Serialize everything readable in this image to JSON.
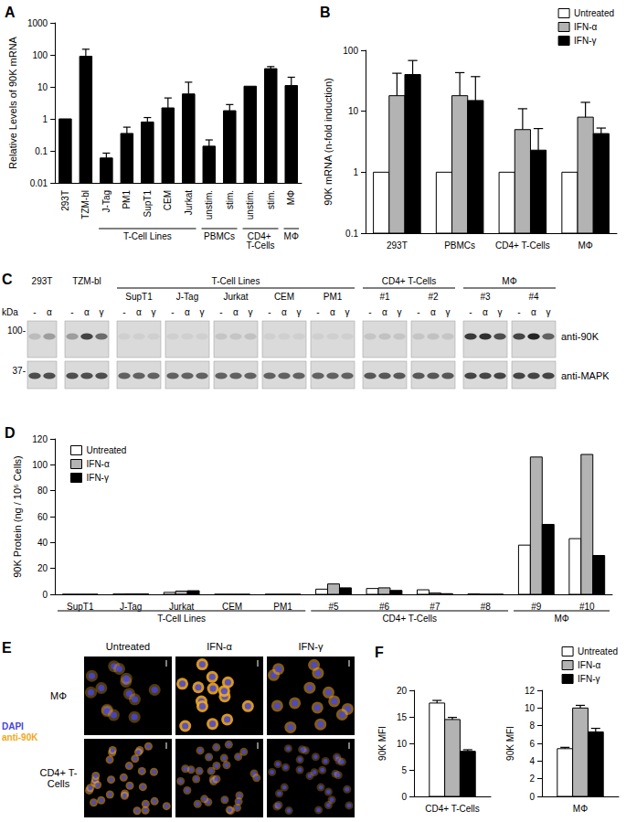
{
  "chart_data": [
    {
      "type": "bar",
      "title": "A",
      "y_label": "Relative Levels of 90K mRNA",
      "categories": [
        "293T",
        "TZM-bl",
        "J-Tag",
        "PM1",
        "SupT1",
        "CEM",
        "Jurkat",
        "unstim.",
        "stim.",
        "unstim.",
        "stim.",
        "MΦ"
      ],
      "values": [
        1,
        90,
        0.06,
        0.35,
        0.8,
        2.2,
        6,
        0.14,
        1.8,
        10.5,
        37,
        11
      ],
      "errors": [
        null,
        60,
        0.025,
        0.2,
        0.3,
        2.3,
        8,
        0.08,
        1,
        null,
        6,
        9
      ],
      "color": "#000000",
      "log": "y",
      "ylim": [
        0.01,
        1000
      ],
      "yticks": [
        0.01,
        0.1,
        1,
        10,
        100,
        1000
      ],
      "grid": false,
      "annotations": [
        {
          "text": "T-Cell Lines",
          "span": [
            2,
            6
          ]
        },
        {
          "text": "PBMCs",
          "span": [
            7,
            8
          ]
        },
        {
          "text": "CD4+ T-Cells",
          "span": [
            9,
            10
          ]
        },
        {
          "text": "MΦ",
          "span": [
            11,
            11
          ]
        }
      ]
    },
    {
      "type": "bar",
      "title": "B",
      "y_label": "90K mRNA (n-fold induction)",
      "categories": [
        "293T",
        "PBMCs",
        "CD4+ T-Cells",
        "MΦ"
      ],
      "series": [
        {
          "name": "Untreated",
          "color": "#ffffff",
          "values": [
            1,
            1,
            1,
            1
          ],
          "errors": [
            null,
            null,
            null,
            null
          ]
        },
        {
          "name": "IFN-α",
          "color": "#b3b3b3",
          "values": [
            18,
            18,
            5,
            8
          ],
          "errors": [
            24,
            25,
            6,
            6
          ]
        },
        {
          "name": "IFN-γ",
          "color": "#000000",
          "values": [
            40,
            15,
            2.3,
            4.3
          ],
          "errors": [
            28,
            22,
            2.9,
            1
          ]
        }
      ],
      "log": "y",
      "ylim": [
        0.1,
        100
      ],
      "yticks": [
        0.1,
        1,
        10,
        100
      ],
      "grid": false,
      "legend": "upper right"
    },
    {
      "type": "bar",
      "title": "D",
      "y_label": "90K Protein (ng / 10⁶ Cells)",
      "categories": [
        "SupT1",
        "J-Tag",
        "Jurkat",
        "CEM",
        "PM1",
        "#5",
        "#6",
        "#7",
        "#8",
        "#9",
        "#10"
      ],
      "series": [
        {
          "name": "Untreated",
          "color": "#ffffff",
          "values": [
            0,
            0.2,
            1.5,
            0,
            0,
            4,
            4.5,
            3.5,
            0.3,
            38,
            43
          ]
        },
        {
          "name": "IFN-α",
          "color": "#b3b3b3",
          "values": [
            0,
            0.3,
            2.5,
            0,
            0,
            8,
            5,
            1,
            0,
            106,
            108
          ]
        },
        {
          "name": "IFN-γ",
          "color": "#000000",
          "values": [
            0,
            0.3,
            2.8,
            0,
            0,
            5,
            3,
            0.5,
            0,
            54,
            30
          ]
        }
      ],
      "ylim": [
        0,
        120
      ],
      "yticks": [
        0,
        20,
        40,
        60,
        80,
        100,
        120
      ],
      "grid": false,
      "legend": "upper left",
      "annotations": [
        {
          "text": "T-Cell Lines",
          "span": [
            0,
            4
          ]
        },
        {
          "text": "CD4+ T-Cells",
          "span": [
            5,
            8
          ]
        },
        {
          "text": "MΦ",
          "span": [
            9,
            10
          ]
        }
      ]
    },
    {
      "type": "bar",
      "title": "F",
      "y_label": "90K MFI",
      "categories": [
        "CD4+ T-Cells"
      ],
      "series": [
        {
          "color": "#ffffff",
          "values": [
            17.6
          ],
          "errors": [
            0.5
          ]
        },
        {
          "color": "#b3b3b3",
          "values": [
            14.5
          ],
          "errors": [
            0.4
          ]
        },
        {
          "color": "#000000",
          "values": [
            8.5
          ],
          "errors": [
            0.3
          ]
        }
      ],
      "ylim": [
        0,
        20
      ],
      "yticks": [
        0,
        5,
        10,
        15,
        20
      ],
      "grid": false
    },
    {
      "type": "bar",
      "y_label": "90K MFI",
      "categories": [
        "MΦ"
      ],
      "series": [
        {
          "name": "Untreated",
          "color": "#ffffff",
          "values": [
            5.4
          ],
          "errors": [
            0.15
          ]
        },
        {
          "name": "IFN-α",
          "color": "#b3b3b3",
          "values": [
            10
          ],
          "errors": [
            0.3
          ]
        },
        {
          "name": "IFN-γ",
          "color": "#000000",
          "values": [
            7.3
          ],
          "errors": [
            0.4
          ]
        }
      ],
      "ylim": [
        0,
        12
      ],
      "yticks": [
        0,
        2,
        4,
        6,
        8,
        10,
        12
      ],
      "grid": false,
      "legend": "upper right"
    }
  ],
  "panel_c": {
    "label": "C",
    "unit": "kDa",
    "markers": [
      "100-",
      "37-"
    ],
    "antibodies": [
      "anti-90K",
      "anti-MAPK"
    ],
    "sections": [
      {
        "blots": [
          {
            "name": "293T",
            "lanes": [
              "-",
              "α"
            ],
            "band_90k": [
              0.15,
              0.3
            ],
            "band_mapk": [
              0.7,
              0.7
            ]
          }
        ]
      },
      {
        "blots": [
          {
            "name": "TZM-bl",
            "lanes": [
              "-",
              "α",
              "γ"
            ],
            "band_90k": [
              0.3,
              0.75,
              0.55
            ],
            "band_mapk": [
              0.7,
              0.7,
              0.7
            ]
          }
        ]
      },
      {
        "title": "T-Cell Lines",
        "blots": [
          {
            "name": "SupT1",
            "lanes": [
              "-",
              "α",
              "γ"
            ],
            "band_90k": [
              0.05,
              0.05,
              0.05
            ],
            "band_mapk": [
              0.6,
              0.6,
              0.6
            ]
          },
          {
            "name": "J-Tag",
            "lanes": [
              "-",
              "α",
              "γ"
            ],
            "band_90k": [
              0.05,
              0.05,
              0.05
            ],
            "band_mapk": [
              0.6,
              0.6,
              0.6
            ]
          },
          {
            "name": "Jurkat",
            "lanes": [
              "-",
              "α",
              "γ"
            ],
            "band_90k": [
              0.1,
              0.1,
              0.12
            ],
            "band_mapk": [
              0.6,
              0.6,
              0.6
            ]
          },
          {
            "name": "CEM",
            "lanes": [
              "-",
              "α",
              "γ"
            ],
            "band_90k": [
              0.05,
              0.05,
              0.05
            ],
            "band_mapk": [
              0.6,
              0.6,
              0.6
            ]
          },
          {
            "name": "PM1",
            "lanes": [
              "-",
              "α",
              "γ"
            ],
            "band_90k": [
              0.05,
              0.05,
              0.05
            ],
            "band_mapk": [
              0.6,
              0.6,
              0.6
            ]
          }
        ]
      },
      {
        "title": "CD4+ T-Cells",
        "blots": [
          {
            "name": "#1",
            "lanes": [
              "-",
              "α",
              "γ"
            ],
            "band_90k": [
              0.1,
              0.12,
              0.1
            ],
            "band_mapk": [
              0.65,
              0.65,
              0.65
            ]
          },
          {
            "name": "#2",
            "lanes": [
              "-",
              "α",
              "γ"
            ],
            "band_90k": [
              0.1,
              0.12,
              0.1
            ],
            "band_mapk": [
              0.65,
              0.65,
              0.65
            ]
          }
        ]
      },
      {
        "title": "MΦ",
        "blots": [
          {
            "name": "#3",
            "lanes": [
              "-",
              "α",
              "γ"
            ],
            "band_90k": [
              0.8,
              0.85,
              0.7
            ],
            "band_mapk": [
              0.75,
              0.75,
              0.75
            ]
          },
          {
            "name": "#4",
            "lanes": [
              "-",
              "α",
              "γ"
            ],
            "band_90k": [
              0.75,
              0.9,
              0.6
            ],
            "band_mapk": [
              0.75,
              0.75,
              0.75
            ]
          }
        ]
      }
    ]
  },
  "panel_e": {
    "label": "E",
    "columns": [
      "Untreated",
      "IFN-α",
      "IFN-γ"
    ],
    "rows": [
      {
        "name": "MΦ",
        "signal": [
          0.35,
          0.9,
          0.55
        ]
      },
      {
        "name": "CD4+ T-Cells",
        "signal": [
          0.55,
          0.45,
          0.3
        ]
      }
    ],
    "stains": [
      {
        "name": "DAPI",
        "color": "#4646d8"
      },
      {
        "name": "anti-90K",
        "color": "#f0a820"
      }
    ]
  }
}
